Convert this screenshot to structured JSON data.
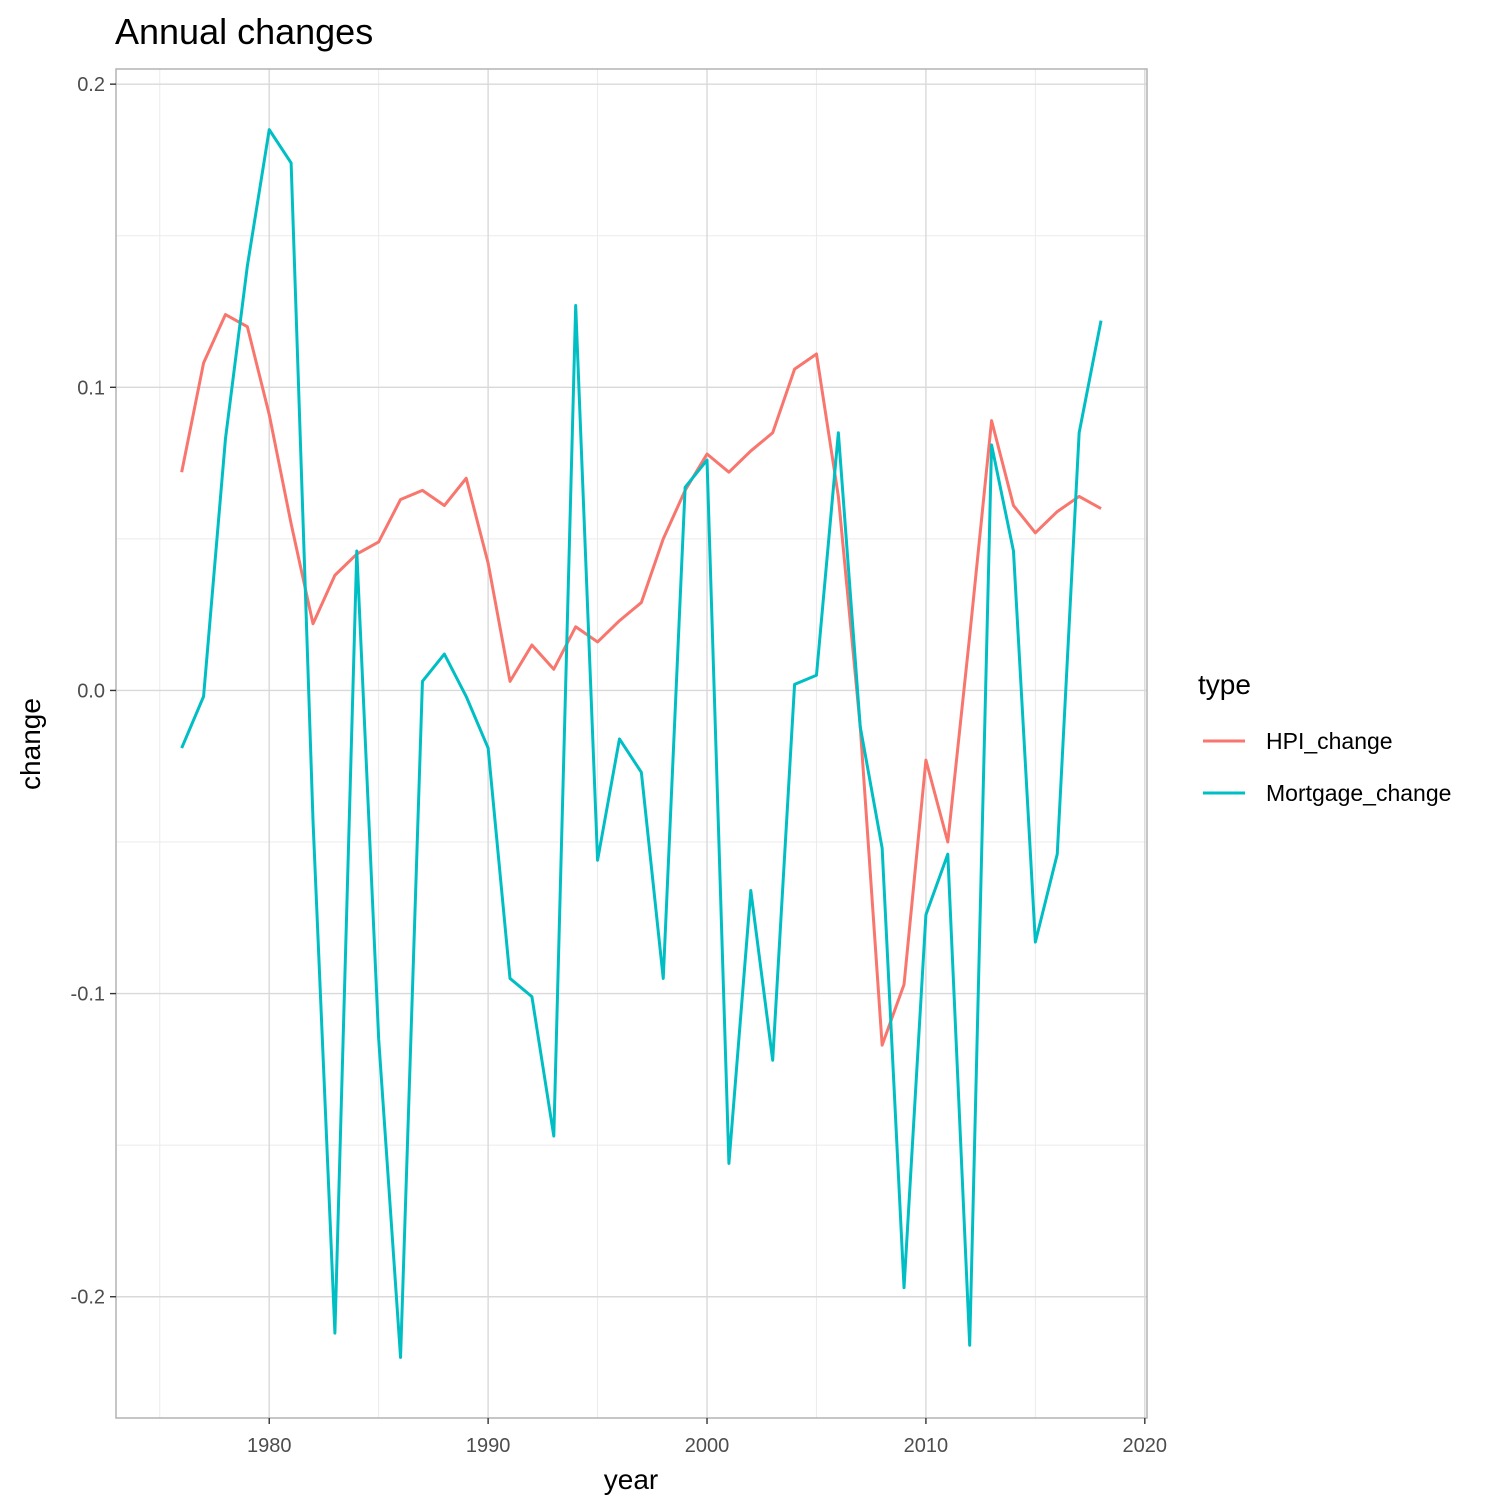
{
  "chart_data": {
    "type": "line",
    "title": "Annual changes",
    "xlabel": "year",
    "ylabel": "change",
    "xlim": [
      1973,
      2020.1
    ],
    "ylim": [
      -0.24,
      0.205
    ],
    "x_ticks": [
      1980,
      1990,
      2000,
      2010,
      2020
    ],
    "x_minor_ticks": [
      1975,
      1985,
      1995,
      2005,
      2015
    ],
    "y_ticks": [
      -0.2,
      -0.1,
      0.0,
      0.1,
      0.2
    ],
    "y_tick_labels": [
      "-0.2",
      "-0.1",
      "0.0",
      "0.1",
      "0.2"
    ],
    "y_minor_ticks": [
      -0.15,
      -0.05,
      0.05,
      0.15
    ],
    "grid": true,
    "legend": {
      "title": "type",
      "position": "right"
    },
    "x": [
      1976,
      1977,
      1978,
      1979,
      1980,
      1981,
      1982,
      1983,
      1984,
      1985,
      1986,
      1987,
      1988,
      1989,
      1990,
      1991,
      1992,
      1993,
      1994,
      1995,
      1996,
      1997,
      1998,
      1999,
      2000,
      2001,
      2002,
      2003,
      2004,
      2005,
      2006,
      2007,
      2008,
      2009,
      2010,
      2011,
      2012,
      2013,
      2014,
      2015,
      2016,
      2017,
      2018
    ],
    "series": [
      {
        "name": "HPI_change",
        "color": "#F8766D",
        "values": [
          0.072,
          0.108,
          0.124,
          0.12,
          0.091,
          0.055,
          0.022,
          0.038,
          0.045,
          0.049,
          0.063,
          0.066,
          0.061,
          0.07,
          0.042,
          0.003,
          0.015,
          0.007,
          0.021,
          0.016,
          0.023,
          0.029,
          0.05,
          0.066,
          0.078,
          0.072,
          0.079,
          0.085,
          0.106,
          0.111,
          0.064,
          -0.012,
          -0.117,
          -0.097,
          -0.023,
          -0.05,
          0.018,
          0.089,
          0.061,
          0.052,
          0.059,
          0.064,
          0.06
        ]
      },
      {
        "name": "Mortgage_change",
        "color": "#00BFC4",
        "values": [
          -0.019,
          -0.002,
          0.083,
          0.14,
          0.185,
          0.174,
          -0.043,
          -0.212,
          0.046,
          -0.115,
          -0.22,
          0.003,
          0.012,
          -0.002,
          -0.019,
          -0.095,
          -0.101,
          -0.147,
          0.127,
          -0.056,
          -0.016,
          -0.027,
          -0.095,
          0.067,
          0.076,
          -0.156,
          -0.066,
          -0.122,
          0.002,
          0.005,
          0.085,
          -0.012,
          -0.052,
          -0.197,
          -0.074,
          -0.054,
          -0.216,
          0.081,
          0.046,
          -0.083,
          -0.054,
          0.085,
          0.122
        ]
      }
    ]
  }
}
